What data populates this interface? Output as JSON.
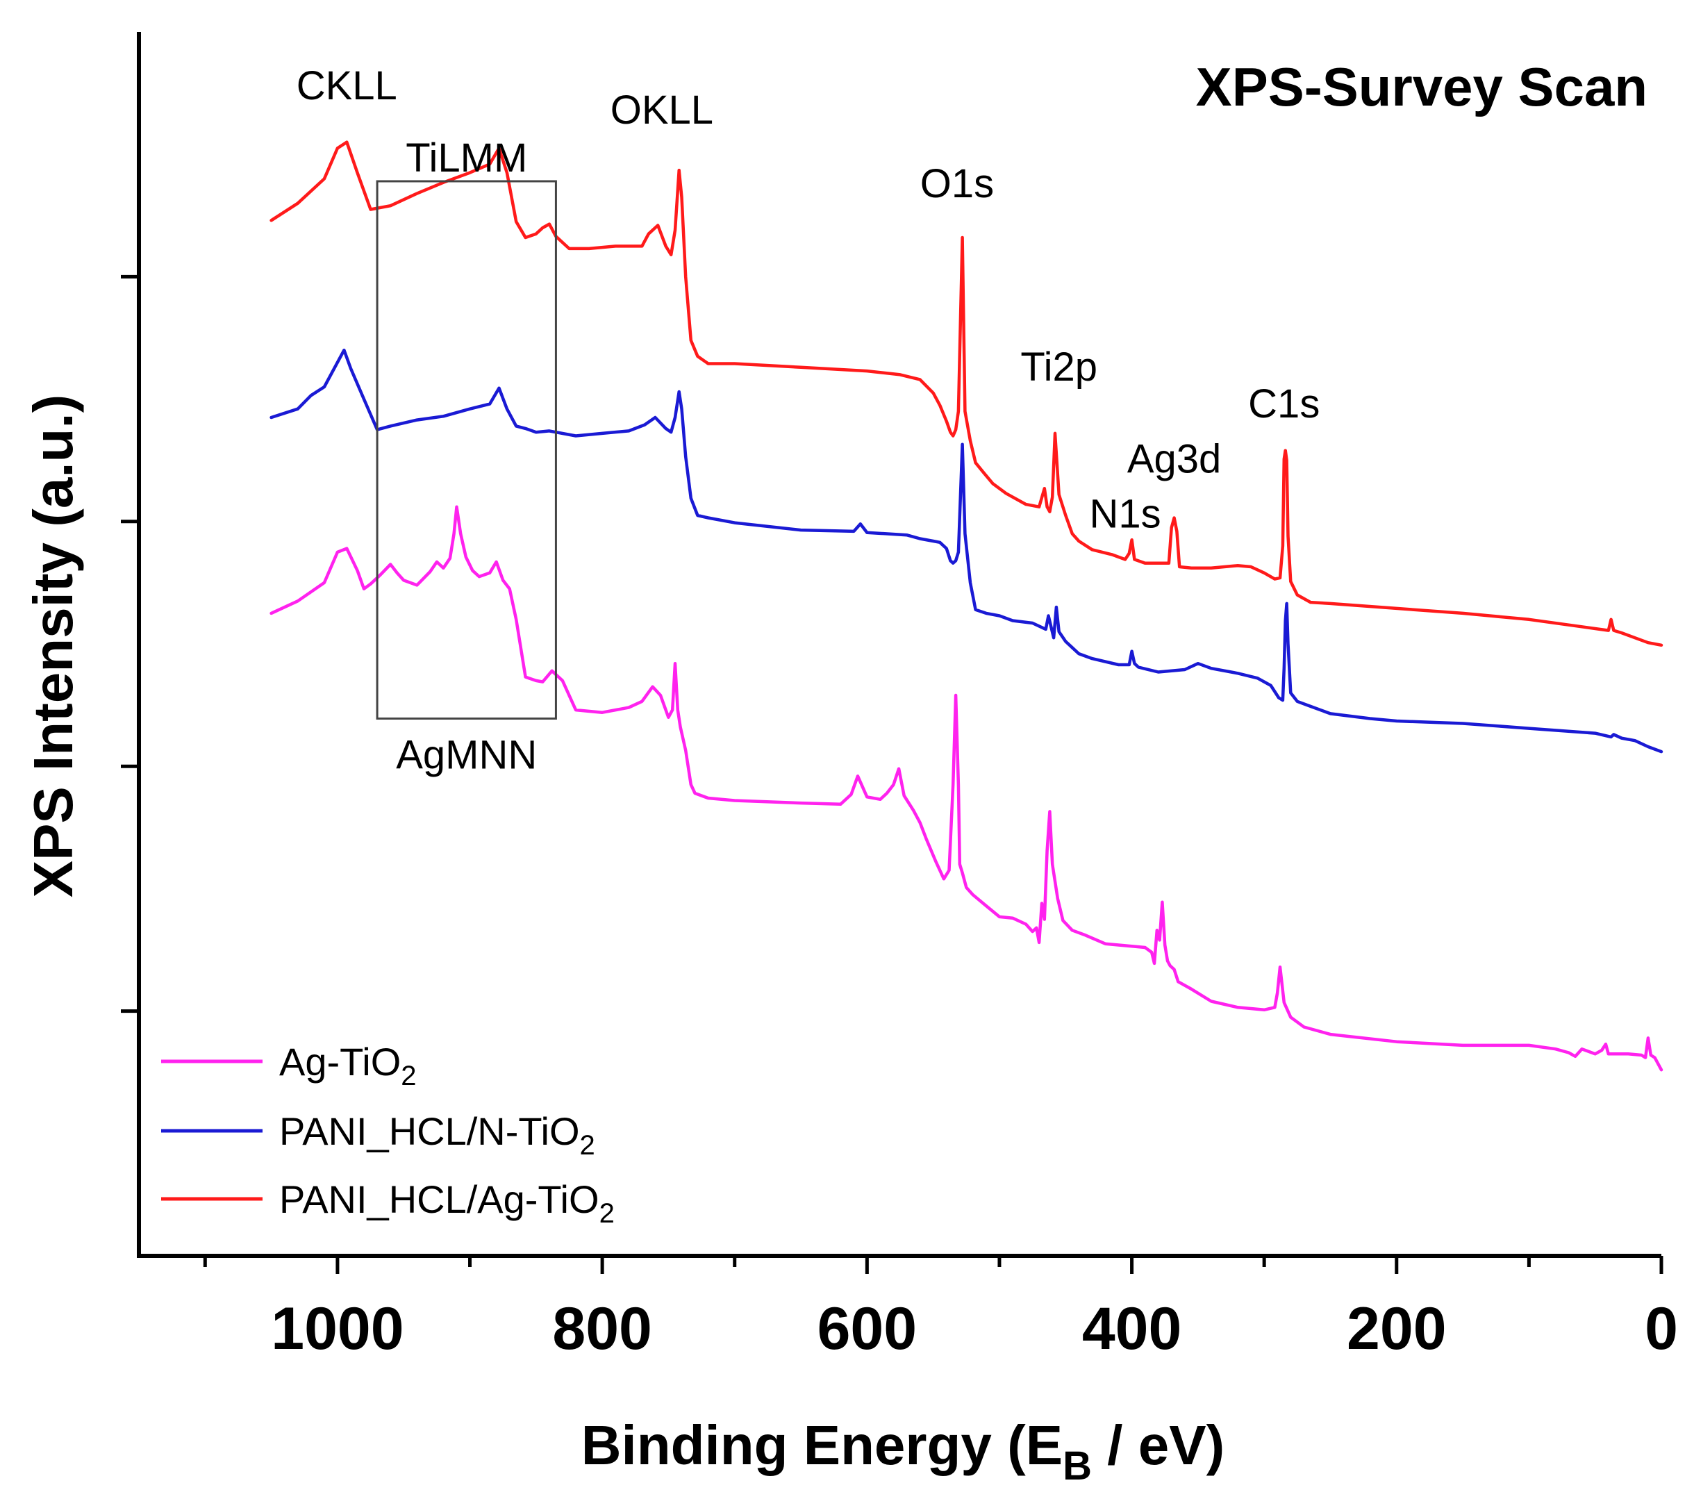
{
  "chart_data": {
    "type": "line",
    "title": "XPS-Survey Scan",
    "xlabel": "Binding Energy  (E",
    "xlabel_sub": "B",
    "xlabel_suffix": " / eV)",
    "ylabel": "XPS Intensity (a.u.)",
    "xlim": [
      1150,
      0
    ],
    "ylim": [
      0,
      100
    ],
    "x_ticks": [
      {
        "value": 1000,
        "label": "1000"
      },
      {
        "value": 800,
        "label": "800"
      },
      {
        "value": 600,
        "label": "600"
      },
      {
        "value": 400,
        "label": "400"
      },
      {
        "value": 200,
        "label": "200"
      },
      {
        "value": 0,
        "label": "0"
      }
    ],
    "x_minor_ticks": [
      1100,
      900,
      700,
      500,
      300,
      100
    ],
    "y_ticks": [
      20,
      40,
      60,
      80
    ],
    "region_box": {
      "x_from": 970,
      "x_to": 835,
      "y_from": 87.8,
      "y_to": 43.9,
      "label_top": "TiLMM",
      "label_bottom": "AgMNN"
    },
    "peak_labels": [
      {
        "text": "CKLL",
        "x": 993,
        "y": 94.5
      },
      {
        "text": "OKLL",
        "x": 755,
        "y": 92.5
      },
      {
        "text": "O1s",
        "x": 532,
        "y": 86.5
      },
      {
        "text": "Ti2p",
        "x": 455,
        "y": 71.5
      },
      {
        "text": "C1s",
        "x": 285,
        "y": 68.5
      },
      {
        "text": "Ag3d",
        "x": 368,
        "y": 64.0
      },
      {
        "text": "N1s",
        "x": 405,
        "y": 59.5
      }
    ],
    "series": [
      {
        "name": "PANI_HCL/Ag-TiO",
        "name_sub": "2",
        "color": "#ff1a1a",
        "x": [
          1050,
          1030,
          1010,
          1000,
          993,
          985,
          975,
          960,
          940,
          920,
          900,
          885,
          878,
          872,
          865,
          858,
          850,
          845,
          840,
          835,
          825,
          810,
          790,
          770,
          765,
          758,
          752,
          748,
          745,
          742,
          740,
          737,
          733,
          728,
          720,
          700,
          650,
          600,
          575,
          560,
          550,
          545,
          540,
          537,
          535,
          533,
          531,
          528,
          526,
          522,
          518,
          512,
          505,
          495,
          480,
          470,
          466,
          464,
          462,
          460,
          458,
          455,
          450,
          445,
          440,
          430,
          415,
          405,
          402,
          400,
          398,
          390,
          380,
          372,
          370,
          368,
          366,
          364,
          355,
          340,
          320,
          310,
          300,
          292,
          288,
          286,
          285,
          284,
          283,
          282,
          280,
          275,
          265,
          250,
          200,
          150,
          100,
          60,
          40,
          38,
          36,
          30,
          20,
          10,
          0
        ],
        "y": [
          84.6,
          86.0,
          88.0,
          90.5,
          91.0,
          88.5,
          85.5,
          85.8,
          86.8,
          87.7,
          88.5,
          89.2,
          90.5,
          88.5,
          84.5,
          83.2,
          83.5,
          84.0,
          84.3,
          83.3,
          82.3,
          82.3,
          82.5,
          82.5,
          83.5,
          84.2,
          82.5,
          81.8,
          83.8,
          88.7,
          86.5,
          80.0,
          74.8,
          73.5,
          72.9,
          72.9,
          72.6,
          72.3,
          72.0,
          71.6,
          70.5,
          69.5,
          68.2,
          67.3,
          67.0,
          67.5,
          69.0,
          83.2,
          69.0,
          66.6,
          64.8,
          64.0,
          63.1,
          62.3,
          61.4,
          61.2,
          62.7,
          61.2,
          60.8,
          62.0,
          67.2,
          62.2,
          60.5,
          59.0,
          58.4,
          57.7,
          57.3,
          56.9,
          57.4,
          58.5,
          56.9,
          56.6,
          56.6,
          56.6,
          59.5,
          60.3,
          59.2,
          56.3,
          56.2,
          56.2,
          56.4,
          56.3,
          55.8,
          55.3,
          55.4,
          58.0,
          65.1,
          65.8,
          65.0,
          58.8,
          55.1,
          54.0,
          53.4,
          53.3,
          52.9,
          52.5,
          52.0,
          51.4,
          51.1,
          52.0,
          51.1,
          50.9,
          50.5,
          50.1,
          49.9
        ]
      },
      {
        "name": "PANI_HCL/N-TiO",
        "name_sub": "2",
        "color": "#1a1ad4",
        "x": [
          1050,
          1030,
          1020,
          1010,
          1000,
          995,
          990,
          980,
          970,
          960,
          940,
          920,
          900,
          885,
          878,
          872,
          865,
          858,
          850,
          840,
          820,
          800,
          780,
          768,
          760,
          752,
          748,
          745,
          742,
          740,
          737,
          733,
          728,
          720,
          700,
          650,
          610,
          605,
          600,
          570,
          560,
          550,
          545,
          540,
          537,
          535,
          533,
          531,
          528,
          526,
          522,
          518,
          510,
          500,
          490,
          475,
          465,
          463,
          461,
          459,
          457,
          455,
          450,
          445,
          440,
          430,
          410,
          402,
          400,
          398,
          395,
          380,
          360,
          350,
          340,
          320,
          305,
          295,
          289,
          286,
          285,
          284,
          283,
          282,
          280,
          275,
          265,
          250,
          220,
          200,
          150,
          100,
          50,
          38,
          36,
          30,
          20,
          10,
          0
        ],
        "y": [
          68.5,
          69.2,
          70.3,
          71.0,
          73.0,
          74.0,
          72.5,
          70.0,
          67.5,
          67.8,
          68.3,
          68.6,
          69.2,
          69.6,
          70.9,
          69.2,
          67.8,
          67.6,
          67.3,
          67.4,
          67.0,
          67.2,
          67.4,
          67.9,
          68.5,
          67.6,
          67.3,
          68.5,
          70.6,
          69.2,
          65.3,
          61.9,
          60.5,
          60.3,
          59.9,
          59.3,
          59.2,
          59.8,
          59.1,
          58.9,
          58.6,
          58.4,
          58.3,
          57.8,
          56.8,
          56.6,
          56.8,
          57.5,
          66.3,
          59.0,
          55.0,
          52.8,
          52.5,
          52.3,
          51.9,
          51.7,
          51.2,
          52.3,
          51.4,
          50.5,
          53.0,
          51.0,
          50.2,
          49.7,
          49.2,
          48.8,
          48.3,
          48.3,
          49.4,
          48.4,
          48.1,
          47.7,
          47.9,
          48.4,
          48.0,
          47.6,
          47.2,
          46.6,
          45.6,
          45.4,
          48.0,
          51.9,
          53.3,
          50.0,
          46.0,
          45.3,
          44.9,
          44.3,
          43.9,
          43.7,
          43.5,
          43.1,
          42.7,
          42.4,
          42.6,
          42.3,
          42.1,
          41.6,
          41.2
        ]
      },
      {
        "name": "Ag-TiO",
        "name_sub": "2",
        "color": "#ff22ee",
        "x": [
          1050,
          1030,
          1010,
          1000,
          993,
          985,
          980,
          975,
          968,
          960,
          955,
          950,
          940,
          930,
          925,
          920,
          915,
          912,
          910,
          907,
          903,
          898,
          893,
          885,
          880,
          875,
          870,
          865,
          858,
          850,
          845,
          838,
          830,
          820,
          800,
          780,
          770,
          762,
          756,
          750,
          747,
          745,
          743,
          741,
          737,
          733,
          730,
          720,
          700,
          650,
          620,
          612,
          607,
          600,
          590,
          585,
          580,
          576,
          572,
          565,
          560,
          555,
          548,
          542,
          538,
          535,
          533,
          531,
          530,
          528,
          525,
          520,
          510,
          500,
          490,
          480,
          475,
          472,
          470,
          468,
          466,
          464,
          462,
          460,
          456,
          452,
          445,
          435,
          420,
          400,
          390,
          385,
          383,
          381,
          379,
          377,
          375,
          373,
          371,
          368,
          365,
          355,
          340,
          320,
          300,
          292,
          290,
          288,
          285,
          280,
          270,
          250,
          200,
          150,
          100,
          80,
          70,
          65,
          60,
          55,
          50,
          45,
          42,
          40,
          35,
          25,
          15,
          12,
          10,
          8,
          5,
          0
        ],
        "y": [
          52.5,
          53.5,
          55.0,
          57.5,
          57.8,
          56.0,
          54.5,
          54.9,
          55.6,
          56.5,
          55.8,
          55.2,
          54.8,
          55.9,
          56.7,
          56.2,
          57.0,
          59.0,
          61.2,
          59.0,
          57.1,
          56.0,
          55.5,
          55.8,
          56.7,
          55.2,
          54.5,
          52.0,
          47.3,
          47.0,
          46.9,
          47.8,
          47.0,
          44.6,
          44.4,
          44.8,
          45.3,
          46.5,
          45.8,
          44.0,
          44.6,
          48.4,
          44.6,
          43.2,
          41.3,
          38.5,
          37.8,
          37.4,
          37.2,
          37.0,
          36.9,
          37.7,
          39.2,
          37.5,
          37.3,
          37.8,
          38.5,
          39.8,
          37.6,
          36.4,
          35.4,
          34.0,
          32.2,
          30.8,
          31.5,
          38.5,
          45.8,
          38.5,
          32.0,
          31.3,
          30.1,
          29.5,
          28.6,
          27.7,
          27.6,
          27.1,
          26.5,
          26.8,
          25.6,
          28.8,
          27.5,
          33.1,
          36.3,
          32.0,
          29.2,
          27.4,
          26.6,
          26.2,
          25.5,
          25.3,
          25.2,
          24.8,
          23.9,
          26.6,
          25.8,
          28.9,
          25.4,
          24.1,
          23.7,
          23.4,
          22.4,
          21.8,
          20.8,
          20.3,
          20.1,
          20.3,
          21.5,
          23.6,
          20.7,
          19.5,
          18.7,
          18.1,
          17.5,
          17.2,
          17.2,
          16.9,
          16.6,
          16.3,
          16.9,
          16.7,
          16.5,
          16.8,
          17.3,
          16.5,
          16.5,
          16.5,
          16.4,
          16.2,
          17.8,
          16.4,
          16.2,
          15.2
        ]
      }
    ],
    "legend": {
      "placement": "bottom-left",
      "order": [
        "Ag-TiO",
        "PANI_HCL/N-TiO",
        "PANI_HCL/Ag-TiO"
      ]
    }
  }
}
